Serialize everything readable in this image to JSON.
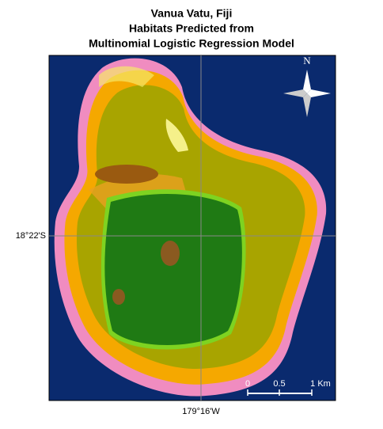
{
  "title": [
    "Vanua Vatu, Fiji",
    "Habitats Predicted from",
    "Multinomial Logistic Regression Model"
  ],
  "latitude_label": "18°22'S",
  "longitude_label": "179°16'W",
  "north_arrow": "N",
  "scale_bar": [
    "0",
    "0.5",
    "1 Km"
  ]
}
